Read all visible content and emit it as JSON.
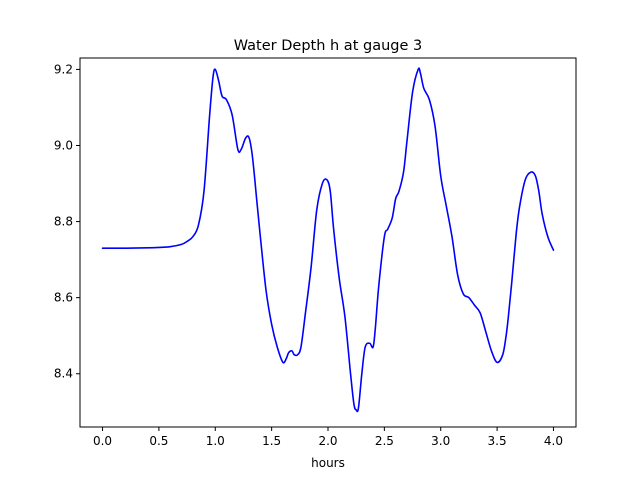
{
  "chart_data": {
    "type": "line",
    "title": "Water Depth h at gauge 3",
    "xlabel": "hours",
    "ylabel": "",
    "xlim": [
      -0.2,
      4.2
    ],
    "ylim": [
      8.26,
      9.23
    ],
    "xticks": [
      0.0,
      0.5,
      1.0,
      1.5,
      2.0,
      2.5,
      3.0,
      3.5,
      4.0
    ],
    "xtick_labels": [
      "0.0",
      "0.5",
      "1.0",
      "1.5",
      "2.0",
      "2.5",
      "3.0",
      "3.5",
      "4.0"
    ],
    "yticks": [
      8.4,
      8.6,
      8.8,
      9.0,
      9.2
    ],
    "ytick_labels": [
      "8.4",
      "8.6",
      "8.8",
      "9.0",
      "9.2"
    ],
    "grid": false,
    "series": [
      {
        "color": "#0000ff",
        "x": [
          0.0,
          0.2,
          0.4,
          0.5,
          0.6,
          0.7,
          0.75,
          0.8,
          0.85,
          0.9,
          0.95,
          0.98,
          1.0,
          1.03,
          1.06,
          1.1,
          1.15,
          1.2,
          1.23,
          1.27,
          1.3,
          1.33,
          1.37,
          1.4,
          1.45,
          1.5,
          1.55,
          1.6,
          1.63,
          1.65,
          1.68,
          1.7,
          1.73,
          1.76,
          1.8,
          1.85,
          1.9,
          1.95,
          1.99,
          2.02,
          2.05,
          2.1,
          2.15,
          2.2,
          2.23,
          2.25,
          2.27,
          2.3,
          2.33,
          2.37,
          2.4,
          2.42,
          2.45,
          2.5,
          2.53,
          2.57,
          2.6,
          2.63,
          2.67,
          2.7,
          2.75,
          2.8,
          2.82,
          2.85,
          2.9,
          2.95,
          3.0,
          3.05,
          3.1,
          3.15,
          3.2,
          3.25,
          3.3,
          3.35,
          3.4,
          3.45,
          3.5,
          3.55,
          3.58,
          3.6,
          3.63,
          3.67,
          3.7,
          3.75,
          3.8,
          3.84,
          3.87,
          3.9,
          3.95,
          4.0
        ],
        "values": [
          8.73,
          8.73,
          8.731,
          8.732,
          8.734,
          8.74,
          8.748,
          8.76,
          8.79,
          8.88,
          9.08,
          9.18,
          9.2,
          9.17,
          9.13,
          9.12,
          9.08,
          8.99,
          8.99,
          9.02,
          9.02,
          8.97,
          8.85,
          8.76,
          8.62,
          8.53,
          8.47,
          8.43,
          8.44,
          8.455,
          8.46,
          8.45,
          8.45,
          8.47,
          8.56,
          8.68,
          8.83,
          8.9,
          8.91,
          8.88,
          8.78,
          8.65,
          8.55,
          8.4,
          8.32,
          8.305,
          8.31,
          8.4,
          8.47,
          8.48,
          8.47,
          8.52,
          8.63,
          8.76,
          8.78,
          8.81,
          8.86,
          8.88,
          8.93,
          9.01,
          9.14,
          9.2,
          9.19,
          9.15,
          9.12,
          9.05,
          8.92,
          8.84,
          8.76,
          8.66,
          8.61,
          8.6,
          8.58,
          8.56,
          8.51,
          8.46,
          8.43,
          8.45,
          8.5,
          8.55,
          8.64,
          8.77,
          8.84,
          8.91,
          8.93,
          8.92,
          8.88,
          8.82,
          8.76,
          8.725
        ]
      }
    ]
  }
}
